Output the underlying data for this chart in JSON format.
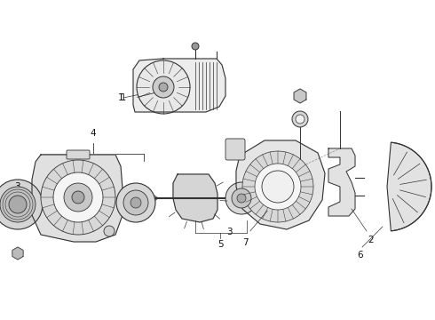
{
  "background_color": "#ffffff",
  "line_color": "#333333",
  "text_color": "#111111",
  "fig_width": 4.9,
  "fig_height": 3.6,
  "dpi": 100
}
